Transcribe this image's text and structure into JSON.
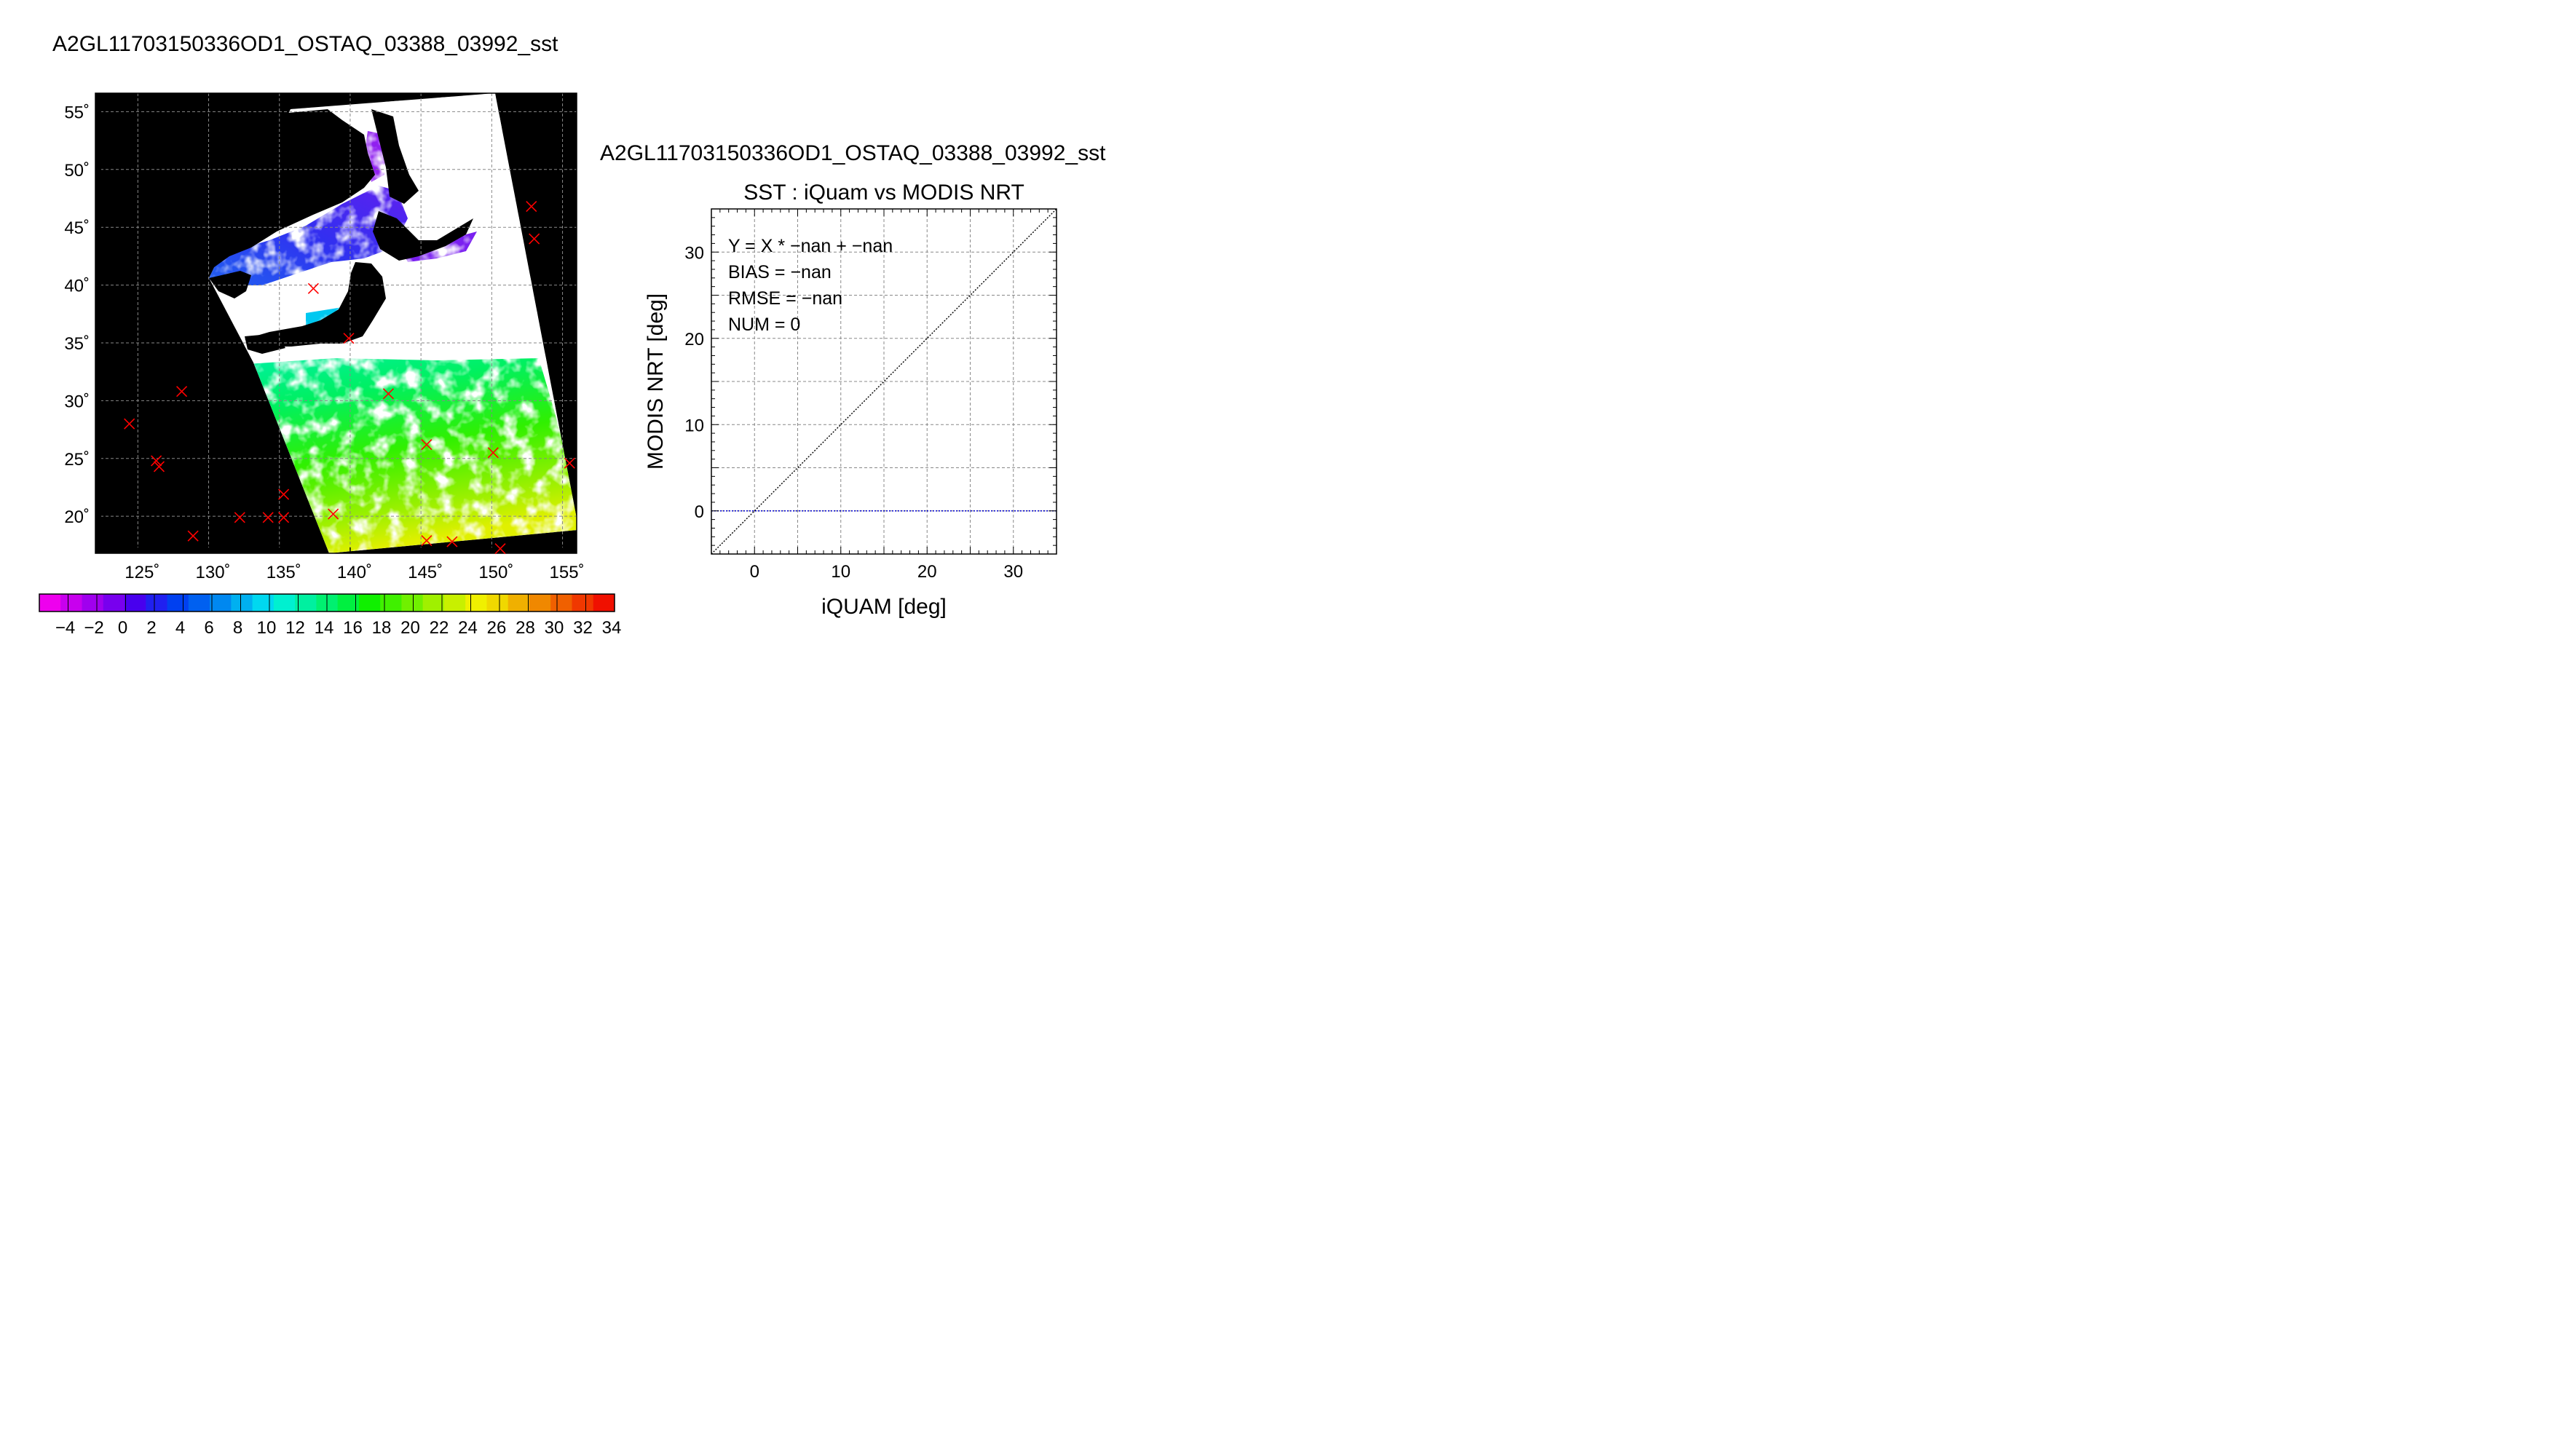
{
  "map": {
    "title": "A2GL11703150336OD1_OSTAQ_03388_03992_sst",
    "lon_ticks": [
      125,
      130,
      135,
      140,
      145,
      150,
      155
    ],
    "lat_ticks": [
      20,
      25,
      30,
      35,
      40,
      45,
      50,
      55
    ],
    "lon_range": [
      122,
      156
    ],
    "lat_range": [
      16.8,
      56.6
    ],
    "degree_symbol": "˚",
    "marker_color": "#ff0000",
    "markers": [
      {
        "lon": 124.4,
        "lat": 28.0
      },
      {
        "lon": 126.3,
        "lat": 24.8
      },
      {
        "lon": 126.5,
        "lat": 24.3
      },
      {
        "lon": 128.1,
        "lat": 30.8
      },
      {
        "lon": 128.9,
        "lat": 18.3
      },
      {
        "lon": 132.2,
        "lat": 19.9
      },
      {
        "lon": 134.2,
        "lat": 19.9
      },
      {
        "lon": 135.3,
        "lat": 21.9
      },
      {
        "lon": 135.3,
        "lat": 19.9
      },
      {
        "lon": 137.4,
        "lat": 39.7
      },
      {
        "lon": 138.8,
        "lat": 20.2
      },
      {
        "lon": 139.9,
        "lat": 35.4
      },
      {
        "lon": 142.7,
        "lat": 30.6
      },
      {
        "lon": 145.4,
        "lat": 26.2
      },
      {
        "lon": 145.4,
        "lat": 17.9
      },
      {
        "lon": 147.2,
        "lat": 17.8
      },
      {
        "lon": 150.1,
        "lat": 25.5
      },
      {
        "lon": 150.6,
        "lat": 17.2
      },
      {
        "lon": 152.8,
        "lat": 46.8
      },
      {
        "lon": 153.0,
        "lat": 44.0
      },
      {
        "lon": 155.5,
        "lat": 24.6
      }
    ]
  },
  "colorbar": {
    "tick_labels": [
      "−4",
      "−2",
      "0",
      "2",
      "4",
      "6",
      "8",
      "10",
      "12",
      "14",
      "16",
      "18",
      "20",
      "22",
      "24",
      "26",
      "28",
      "30",
      "32",
      "34"
    ],
    "colors": [
      "#ee00ee",
      "#c800ee",
      "#a000ee",
      "#7800ee",
      "#4800ee",
      "#2020f0",
      "#0040f0",
      "#0060f0",
      "#0088f0",
      "#00b0f0",
      "#00d8f0",
      "#00f0d0",
      "#00f0a0",
      "#00f070",
      "#00f040",
      "#10f000",
      "#40f000",
      "#70f000",
      "#a0f000",
      "#c8f000",
      "#f0f000",
      "#f0d800",
      "#f0b000",
      "#f08800",
      "#f06000",
      "#f03800",
      "#f01000"
    ]
  },
  "chart_data": {
    "type": "scatter",
    "title": "A2GL11703150336OD1_OSTAQ_03388_03992_sst",
    "subtitle": "SST : iQuam vs MODIS NRT",
    "xlabel": "iQUAM [deg]",
    "ylabel": "MODIS NRT [deg]",
    "xlim": [
      -5,
      35
    ],
    "ylim": [
      -5,
      35
    ],
    "xticks": [
      0,
      10,
      20,
      30
    ],
    "yticks": [
      0,
      10,
      20,
      30
    ],
    "grid": true,
    "points": [],
    "reference_lines": [
      {
        "kind": "identity",
        "x": [
          -5,
          35
        ],
        "y": [
          -5,
          35
        ],
        "color": "#000000"
      },
      {
        "kind": "fit",
        "y": 0,
        "color": "#0000cc"
      }
    ],
    "annotations": [
      "Y = X * −nan + −nan",
      "BIAS = −nan",
      "RMSE = −nan",
      "NUM = 0"
    ]
  }
}
